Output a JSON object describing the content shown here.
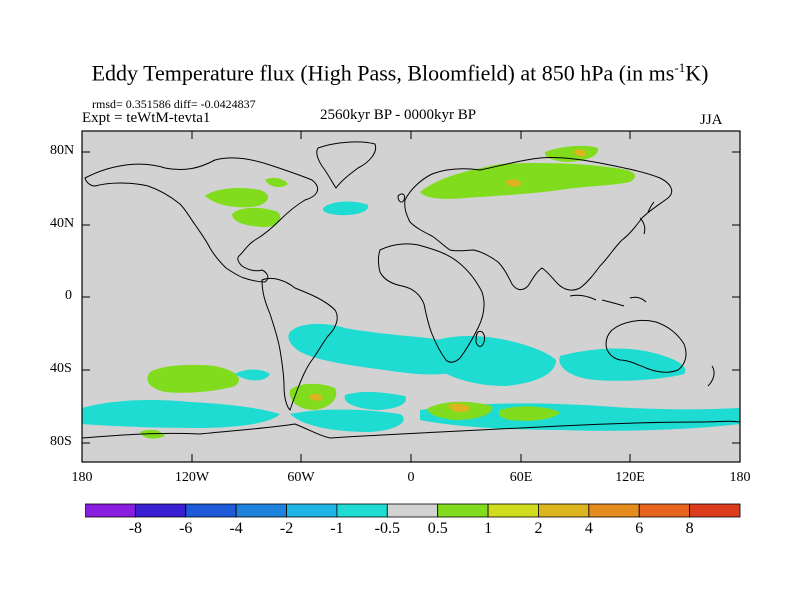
{
  "title_main": "Eddy Temperature flux (High Pass, Bloomfield) at 850 hPa (in ms",
  "title_sup": "-1",
  "title_end": "K)",
  "stats": "rmsd= 0.351586 diff= -0.0424837",
  "expt": "Expt = teWtM-tevta1",
  "period": "2560kyr BP - 0000kyr BP",
  "season": "JJA",
  "lat_labels": [
    "80N",
    "40N",
    "0",
    "40S",
    "80S"
  ],
  "lon_labels": [
    "180",
    "120W",
    "60W",
    "0",
    "60E",
    "120E",
    "180"
  ],
  "colorbar": {
    "levels": [
      "-8",
      "-6",
      "-4",
      "-2",
      "-1",
      "-0.5",
      "0.5",
      "1",
      "2",
      "4",
      "6",
      "8"
    ],
    "colors": [
      "#8a1ee0",
      "#3a1ed2",
      "#1e5ad7",
      "#1e82dc",
      "#1eb4e6",
      "#1edcd2",
      "#d2d2d2",
      "#82dc1e",
      "#d2dc1e",
      "#dcb41e",
      "#e68c1e",
      "#e6641e",
      "#dc3c1e"
    ]
  },
  "map_colors": {
    "background": "#d2d2d2",
    "cyan": "#1edcd2",
    "light_blue": "#1eb4e6",
    "green": "#82dc1e",
    "yellow": "#d2dc1e",
    "orange": "#dcb41e"
  }
}
